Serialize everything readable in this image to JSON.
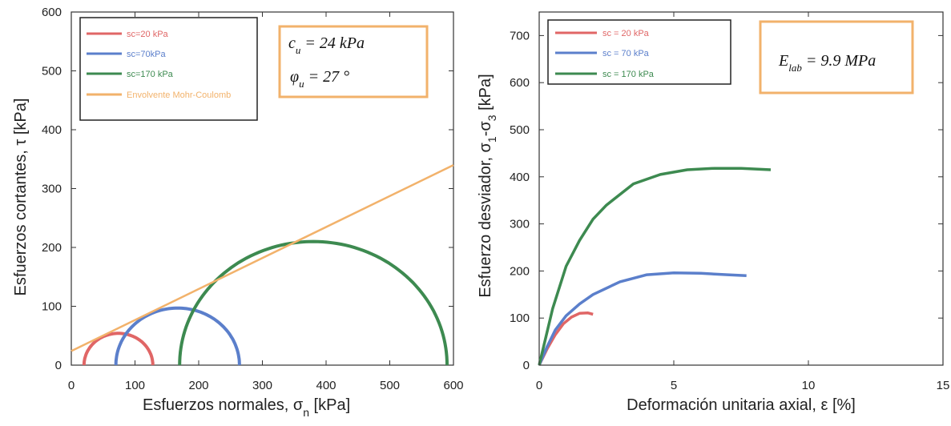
{
  "chart_data": [
    {
      "type": "line",
      "title": "",
      "xlabel": "Esfuerzos normales, σ",
      "xlabel_sub": "n",
      "xlabel_unit": " [kPa]",
      "ylabel": "Esfuerzos cortantes, τ [kPa]",
      "xlim": [
        0,
        600
      ],
      "ylim": [
        0,
        600
      ],
      "xticks": [
        "0",
        "100",
        "200",
        "300",
        "400",
        "500",
        "600"
      ],
      "yticks": [
        "0",
        "100",
        "200",
        "300",
        "400",
        "500",
        "600"
      ],
      "grid": false,
      "legend_position": "top-left",
      "series": [
        {
          "name": "sc=20 kPa",
          "color": "#e06666",
          "kind": "mohr-circle",
          "sigma3": 20,
          "sigma1": 128
        },
        {
          "name": "sc=70kPa",
          "color": "#5b7fcb",
          "kind": "mohr-circle",
          "sigma3": 70,
          "sigma1": 264
        },
        {
          "name": "sc=170 kPa",
          "color": "#3d8a50",
          "kind": "mohr-circle",
          "sigma3": 170,
          "sigma1": 590
        },
        {
          "name": "Envolvente Mohr-Coulomb",
          "color": "#f2b26b",
          "kind": "line",
          "x": [
            0,
            600
          ],
          "y": [
            24,
            340
          ]
        }
      ],
      "annotation": {
        "line1": {
          "symbol": "c",
          "sub": "u",
          "text": " = 24 kPa"
        },
        "line2": {
          "symbol": "φ",
          "sub": "u",
          "text": " = 27 °"
        }
      }
    },
    {
      "type": "line",
      "title": "",
      "xlabel": "Deformación unitaria axial, ε [%]",
      "ylabel": "Esfuerzo desviador, σ",
      "ylabel_sub1": "1",
      "ylabel_mid": "-σ",
      "ylabel_sub2": "3",
      "ylabel_unit": " [kPa]",
      "xlim": [
        0,
        15
      ],
      "ylim": [
        0,
        750
      ],
      "xticks": [
        "0",
        "5",
        "10",
        "15"
      ],
      "yticks": [
        "0",
        "100",
        "200",
        "300",
        "400",
        "500",
        "600",
        "700"
      ],
      "grid": false,
      "legend_position": "top-left",
      "series": [
        {
          "name": "sc = 20 kPa",
          "color": "#e06666",
          "x": [
            0,
            0.3,
            0.6,
            0.9,
            1.2,
            1.5,
            1.8,
            2.0
          ],
          "y": [
            0,
            35,
            65,
            88,
            102,
            110,
            111,
            108
          ]
        },
        {
          "name": "sc = 70 kPa",
          "color": "#5b7fcb",
          "x": [
            0,
            0.3,
            0.6,
            1.0,
            1.5,
            2.0,
            3.0,
            4.0,
            5.0,
            6.0,
            7.0,
            7.7
          ],
          "y": [
            0,
            40,
            75,
            105,
            130,
            150,
            177,
            192,
            196,
            195,
            192,
            190
          ]
        },
        {
          "name": "sc = 170 kPa",
          "color": "#3d8a50",
          "x": [
            0,
            0.25,
            0.5,
            1.0,
            1.5,
            2.0,
            2.5,
            3.5,
            4.5,
            5.5,
            6.5,
            7.5,
            8.6
          ],
          "y": [
            0,
            60,
            120,
            210,
            265,
            310,
            340,
            385,
            405,
            415,
            418,
            418,
            415
          ]
        }
      ],
      "annotation": {
        "symbol": "E",
        "sub": "lab",
        "text": " = 9.9 MPa"
      }
    }
  ]
}
